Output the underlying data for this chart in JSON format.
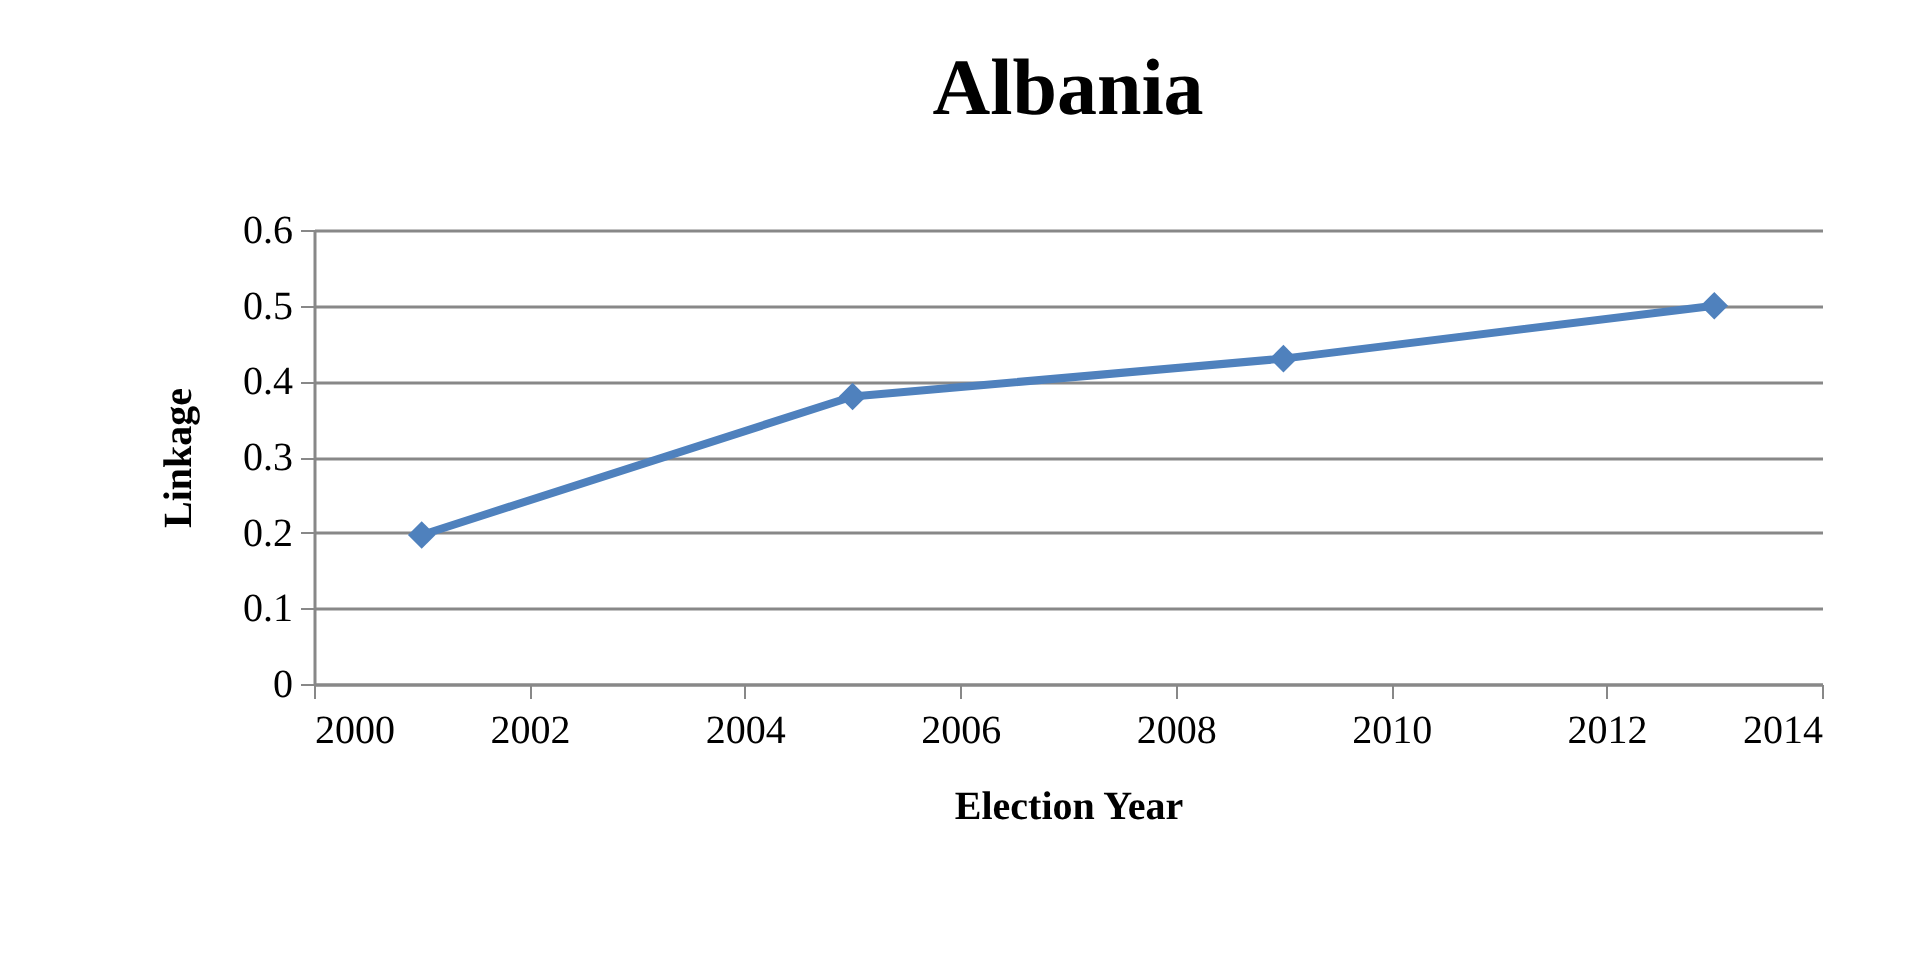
{
  "chart_data": {
    "type": "line",
    "title": "Albania",
    "xlabel": "Election Year",
    "ylabel": "Linkage",
    "x": [
      2001,
      2005,
      2009,
      2013
    ],
    "series": [
      {
        "color": "#4f81bd",
        "values": [
          0.197,
          0.38,
          0.43,
          0.5
        ]
      }
    ],
    "xlim": [
      2000,
      2014
    ],
    "xticks": [
      2000,
      2002,
      2004,
      2006,
      2008,
      2010,
      2012,
      2014
    ],
    "ylim": [
      0,
      0.6
    ],
    "yticks": [
      0,
      0.1,
      0.2,
      0.3,
      0.4,
      0.5,
      0.6
    ],
    "grid": "y",
    "marker": "diamond",
    "line_style": "solid"
  }
}
